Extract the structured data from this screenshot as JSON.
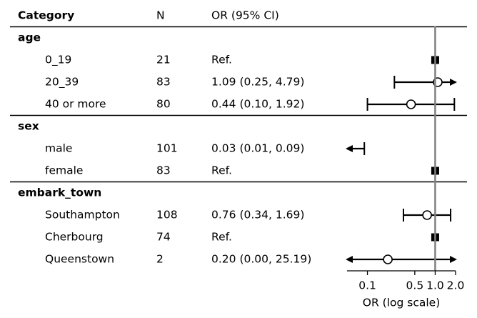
{
  "chart_data": {
    "type": "forest",
    "columns": {
      "category": "Category",
      "n": "N",
      "or_ci": "OR (95% CI)"
    },
    "xlabel": "OR (log scale)",
    "x_ticks": [
      "0.1",
      "0.5",
      "1.0",
      "2.0"
    ],
    "x_tick_values": [
      0.1,
      0.5,
      1.0,
      2.0
    ],
    "xlim": [
      0.05,
      2.0
    ],
    "scale": "log",
    "reference_value": 1.0,
    "groups": [
      {
        "name": "age",
        "rows": [
          {
            "label": "0_19",
            "n": "21",
            "text": "Ref.",
            "ref": true,
            "or": 1.0
          },
          {
            "label": "20_39",
            "n": "83",
            "text": "1.09 (0.25, 4.79)",
            "or": 1.09,
            "lo": 0.25,
            "hi": 4.79
          },
          {
            "label": "40 or more",
            "n": "80",
            "text": "0.44 (0.10, 1.92)",
            "or": 0.44,
            "lo": 0.1,
            "hi": 1.92
          }
        ]
      },
      {
        "name": "sex",
        "rows": [
          {
            "label": "male",
            "n": "101",
            "text": "0.03 (0.01, 0.09)",
            "or": 0.03,
            "lo": 0.01,
            "hi": 0.09
          },
          {
            "label": "female",
            "n": "83",
            "text": "Ref.",
            "ref": true,
            "or": 1.0
          }
        ]
      },
      {
        "name": "embark_town",
        "rows": [
          {
            "label": "Southampton",
            "n": "108",
            "text": "0.76 (0.34, 1.69)",
            "or": 0.76,
            "lo": 0.34,
            "hi": 1.69
          },
          {
            "label": "Cherbourg",
            "n": "74",
            "text": "Ref.",
            "ref": true,
            "or": 1.0
          },
          {
            "label": "Queenstown",
            "n": "2",
            "text": "0.20 (0.00, 25.19)",
            "or": 0.2,
            "lo": 0.001,
            "hi": 25.19
          }
        ]
      }
    ]
  }
}
